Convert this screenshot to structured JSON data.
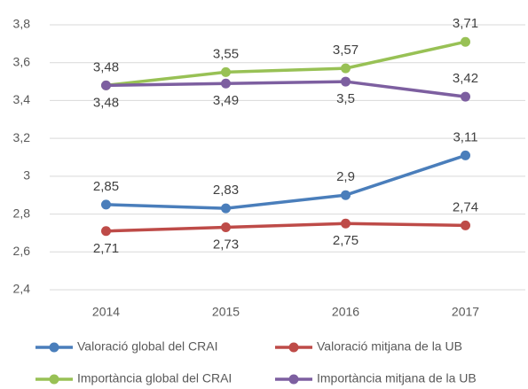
{
  "chart_data": {
    "type": "line",
    "categories": [
      "2014",
      "2015",
      "2016",
      "2017"
    ],
    "series": [
      {
        "name": "Valoració global del CRAI",
        "color": "#4a7ebb",
        "values": [
          2.85,
          2.83,
          2.9,
          3.11
        ],
        "value_labels": [
          "2,85",
          "2,83",
          "2,9",
          "3,11"
        ]
      },
      {
        "name": "Valoració mitjana de la UB",
        "color": "#be4b48",
        "values": [
          2.71,
          2.73,
          2.75,
          2.74
        ],
        "value_labels": [
          "2,71",
          "2,73",
          "2,75",
          "2,74"
        ]
      },
      {
        "name": "Importància global del CRAI",
        "color": "#98c155",
        "values": [
          3.48,
          3.55,
          3.57,
          3.71
        ],
        "value_labels": [
          "3,48",
          "3,55",
          "3,57",
          "3,71"
        ]
      },
      {
        "name": "Importància mitjana de la UB",
        "color": "#7d5fa0",
        "values": [
          3.48,
          3.49,
          3.5,
          3.42
        ],
        "value_labels": [
          "3,48",
          "3,49",
          "3,5",
          "3,42"
        ]
      }
    ],
    "ylim": [
      2.4,
      3.8
    ],
    "yticks": [
      {
        "value": 2.4,
        "label": "2,4"
      },
      {
        "value": 2.6,
        "label": "2,6"
      },
      {
        "value": 2.8,
        "label": "2,8"
      },
      3,
      {
        "value": 3.2,
        "label": "3,2"
      },
      {
        "value": 3.4,
        "label": "3,4"
      },
      {
        "value": 3.6,
        "label": "3,6"
      },
      {
        "value": 3.8,
        "label": "3,8"
      }
    ],
    "grid": true,
    "legend": "bottom"
  }
}
